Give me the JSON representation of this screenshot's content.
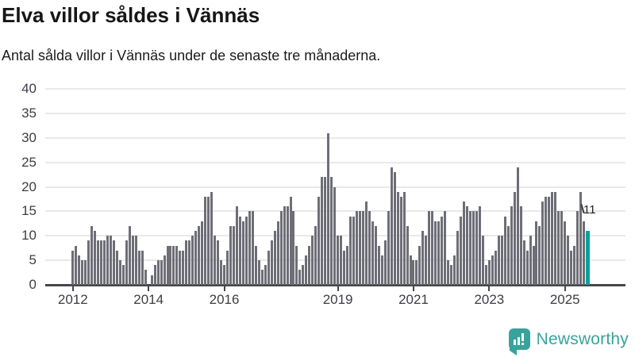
{
  "title": "Elva villor såldes i Vännäs",
  "subtitle": "Antal sålda villor i Vännäs under de senaste tre månaderna.",
  "annotation": {
    "label": "11"
  },
  "logo": {
    "text": "Newsworthy",
    "color": "#38a39c",
    "icon": "newsworthy-bubble-barchart-icon"
  },
  "chart_data": {
    "type": "bar",
    "title": "Elva villor såldes i Vännäs",
    "subtitle": "Antal sålda villor i Vännäs under de senaste tre månaderna.",
    "xlabel": "",
    "ylabel": "",
    "frequency": "monthly",
    "x_start": "2012-01",
    "x_end": "2025-08",
    "values_by_year": {
      "2012": [
        7,
        8,
        6,
        5,
        5,
        9,
        12,
        11,
        9,
        9,
        9,
        10
      ],
      "2013": [
        10,
        9,
        7,
        5,
        4,
        9,
        12,
        10,
        10,
        7,
        7,
        3
      ],
      "2014": [
        0,
        2,
        4,
        5,
        5,
        6,
        8,
        8,
        8,
        8,
        7,
        7
      ],
      "2015": [
        9,
        9,
        10,
        11,
        12,
        13,
        18,
        18,
        19,
        10,
        9,
        5
      ],
      "2016": [
        4,
        7,
        12,
        12,
        16,
        14,
        13,
        14,
        15,
        15,
        8,
        5
      ],
      "2017": [
        3,
        4,
        7,
        9,
        11,
        13,
        15,
        16,
        16,
        18,
        15,
        8
      ],
      "2018": [
        3,
        4,
        6,
        8,
        10,
        12,
        18,
        22,
        22,
        31,
        22,
        20
      ],
      "2019": [
        10,
        10,
        7,
        8,
        14,
        14,
        15,
        15,
        15,
        17,
        15,
        13
      ],
      "2020": [
        12,
        8,
        6,
        9,
        15,
        24,
        23,
        19,
        18,
        19,
        12,
        6
      ],
      "2021": [
        5,
        5,
        8,
        11,
        10,
        15,
        15,
        13,
        13,
        14,
        15,
        5
      ],
      "2022": [
        4,
        6,
        11,
        14,
        17,
        16,
        15,
        15,
        15,
        16,
        10,
        4
      ],
      "2023": [
        5,
        6,
        7,
        10,
        10,
        14,
        12,
        16,
        19,
        24,
        16,
        9
      ],
      "2024": [
        7,
        10,
        8,
        13,
        12,
        17,
        18,
        18,
        19,
        19,
        15,
        15
      ],
      "2025": [
        13,
        10,
        7,
        8,
        15,
        19,
        13,
        11
      ]
    },
    "last_value": 11,
    "highlight_last": true,
    "bar_color": "#6e6e77",
    "highlight_color": "#00a39f",
    "grid": true,
    "ylim": [
      0,
      40
    ],
    "y_ticks": [
      0,
      5,
      10,
      15,
      20,
      25,
      30,
      35,
      40
    ],
    "x_tick_labels": [
      "2012",
      "2014",
      "2016",
      "2019",
      "2021",
      "2023",
      "2025"
    ],
    "x_tick_month_offsets": [
      0,
      24,
      48,
      84,
      108,
      132,
      156
    ]
  }
}
